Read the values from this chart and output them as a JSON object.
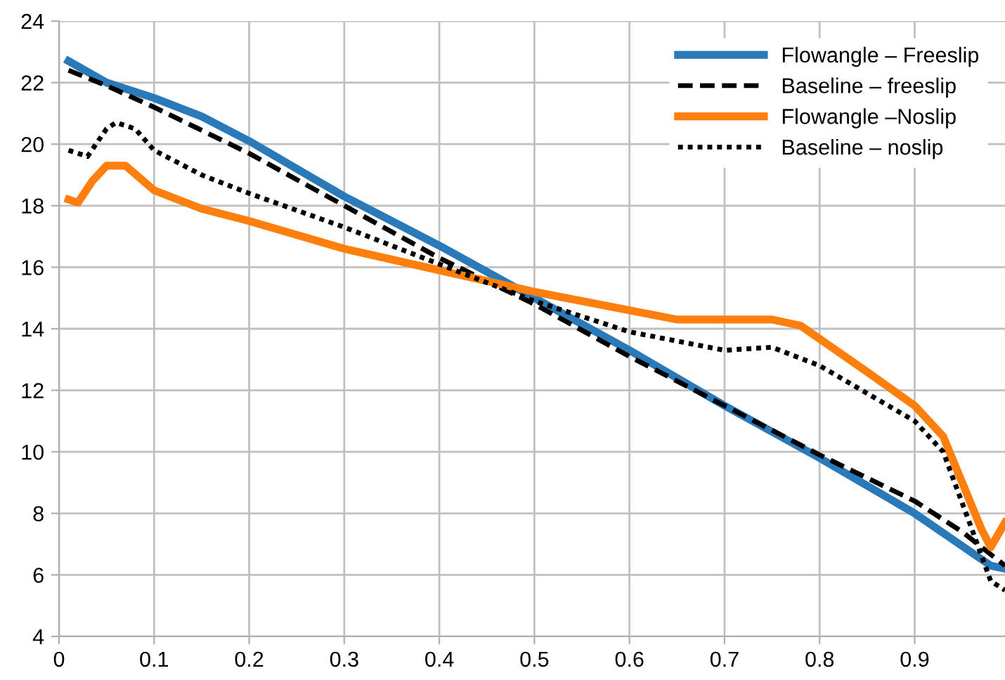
{
  "chart_data": {
    "type": "line",
    "xlim": [
      0,
      0.995
    ],
    "ylim": [
      4,
      24
    ],
    "xticks": [
      0,
      0.1,
      0.2,
      0.3,
      0.4,
      0.5,
      0.6,
      0.7,
      0.8,
      0.9
    ],
    "yticks": [
      4,
      6,
      8,
      10,
      12,
      14,
      16,
      18,
      20,
      22,
      24
    ],
    "grid": true,
    "legend": "top right",
    "marker": "none",
    "series": [
      {
        "name": "Flowangle – Freeslip",
        "color": "#2a7ab9",
        "line_style": "solid",
        "x": [
          0.01,
          0.05,
          0.1,
          0.15,
          0.2,
          0.3,
          0.4,
          0.5,
          0.6,
          0.7,
          0.8,
          0.9,
          0.98,
          0.995
        ],
        "values": [
          22.7,
          22.0,
          21.5,
          20.9,
          20.1,
          18.3,
          16.7,
          15.0,
          13.3,
          11.5,
          9.8,
          8.0,
          6.3,
          6.2
        ]
      },
      {
        "name": "Baseline – freeslip",
        "color": "#000000",
        "line_style": "dashed",
        "x": [
          0.01,
          0.05,
          0.1,
          0.2,
          0.3,
          0.4,
          0.5,
          0.6,
          0.7,
          0.8,
          0.9,
          0.95,
          0.995
        ],
        "values": [
          22.4,
          21.9,
          21.2,
          19.7,
          18.0,
          16.3,
          14.8,
          13.1,
          11.5,
          9.9,
          8.4,
          7.4,
          6.3
        ]
      },
      {
        "name": "Flowangle –Noslip",
        "color": "#ff7f0e",
        "line_style": "solid",
        "x": [
          0.01,
          0.02,
          0.035,
          0.05,
          0.07,
          0.1,
          0.15,
          0.2,
          0.3,
          0.4,
          0.5,
          0.6,
          0.65,
          0.7,
          0.75,
          0.78,
          0.85,
          0.9,
          0.93,
          0.97,
          0.98,
          0.995
        ],
        "values": [
          18.2,
          18.1,
          18.8,
          19.3,
          19.3,
          18.5,
          17.9,
          17.5,
          16.6,
          15.9,
          15.2,
          14.6,
          14.3,
          14.3,
          14.3,
          14.1,
          12.6,
          11.5,
          10.5,
          7.5,
          6.9,
          7.7
        ]
      },
      {
        "name": "Baseline – noslip",
        "color": "#000000",
        "line_style": "dotted",
        "x": [
          0.01,
          0.03,
          0.05,
          0.06,
          0.08,
          0.1,
          0.15,
          0.2,
          0.3,
          0.4,
          0.5,
          0.6,
          0.7,
          0.75,
          0.8,
          0.9,
          0.93,
          0.96,
          0.98,
          0.995
        ],
        "values": [
          19.8,
          19.6,
          20.5,
          20.7,
          20.5,
          19.8,
          19.0,
          18.4,
          17.3,
          16.1,
          14.9,
          13.9,
          13.3,
          13.4,
          12.8,
          11.0,
          10.0,
          7.5,
          5.8,
          5.5
        ]
      }
    ]
  }
}
